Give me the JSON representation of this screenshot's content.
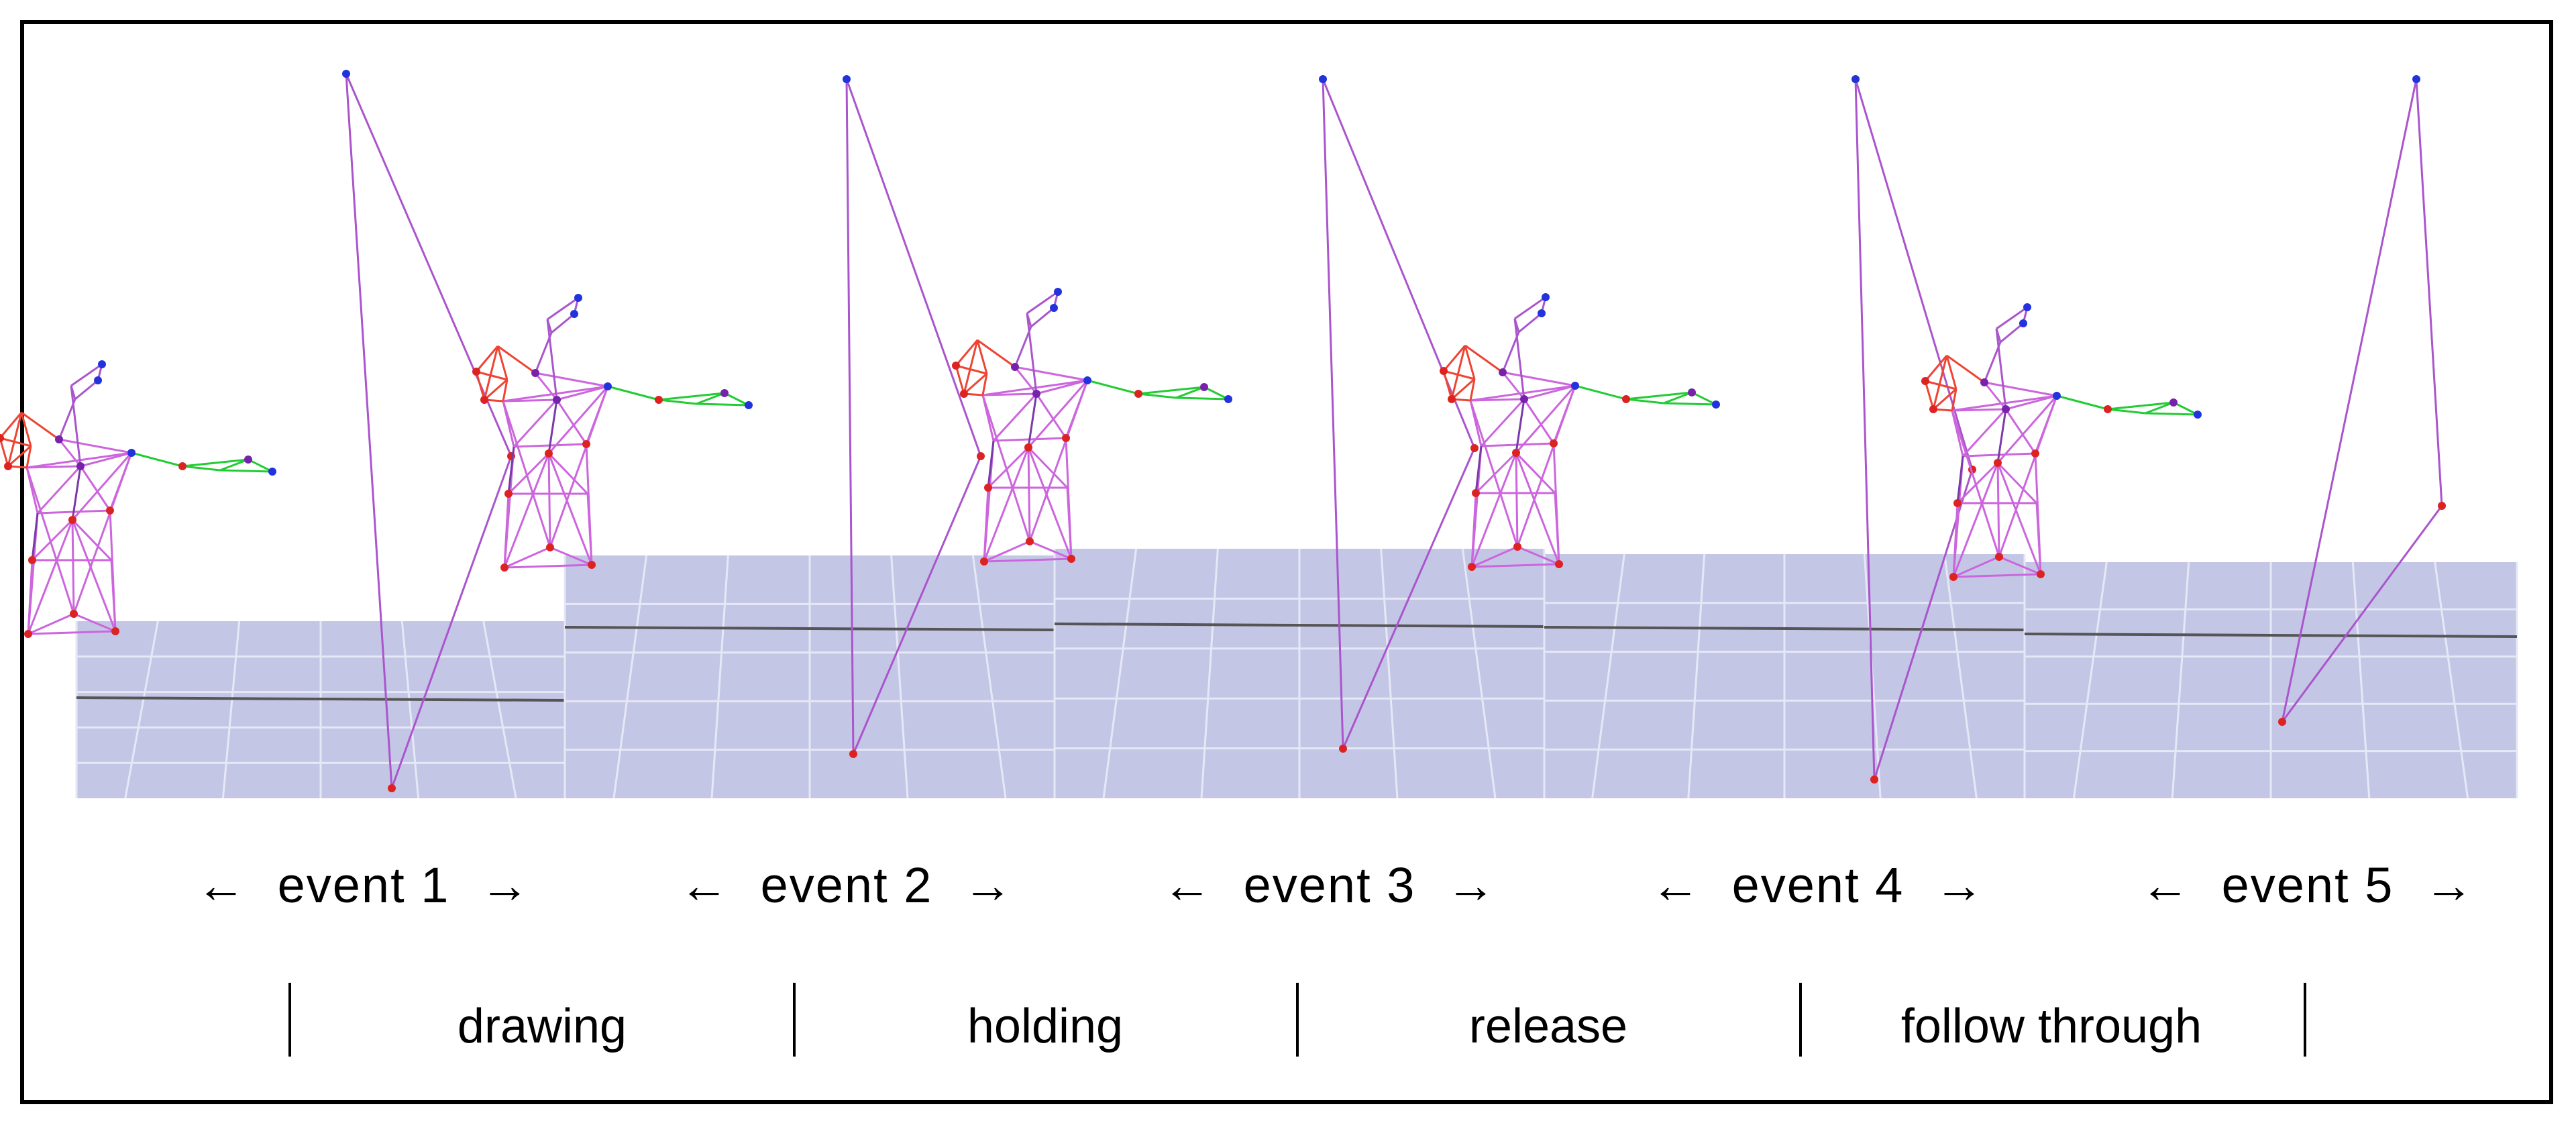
{
  "events": [
    {
      "label": "←  event 1  →"
    },
    {
      "label": "←  event 2  →"
    },
    {
      "label": "←  event 3  →"
    },
    {
      "label": "←  event 4  →"
    },
    {
      "label": "←  event 5  →"
    }
  ],
  "phases": [
    "drawing",
    "holding",
    "release",
    "follow through"
  ],
  "colors": {
    "floor": "#c4c6e6",
    "floor_grid": "#e6e8f6",
    "horizon": "#555555",
    "body_links": "#cc66dd",
    "bow": "#aa55cc",
    "head": "#ee4433",
    "arm": "#22cc33",
    "torso_lines": "#7a3aa8"
  }
}
